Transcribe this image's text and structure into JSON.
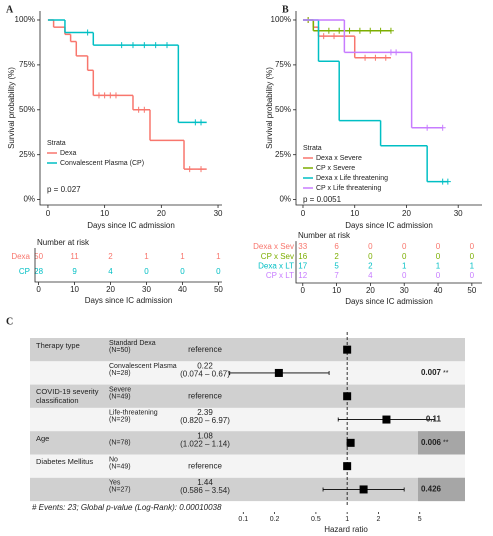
{
  "chart_data": [
    {
      "type": "km",
      "panel": "A",
      "xlabel": "Days since IC admission",
      "ylabel": "Survival probability (%)",
      "xlim": [
        -1.4,
        30.7
      ],
      "xticks": [
        0,
        10,
        20,
        30
      ],
      "ylim": [
        -3,
        105
      ],
      "yticks": [
        {
          "value": 0,
          "label": "0%"
        },
        {
          "value": 25,
          "label": "25%"
        },
        {
          "value": 50,
          "label": "50%"
        },
        {
          "value": 75,
          "label": "75%"
        },
        {
          "value": 100,
          "label": "100%"
        }
      ],
      "legend_title": "Strata",
      "annotation": "p = 0.027",
      "series": [
        {
          "name": "Dexa",
          "color": "#f8766d",
          "x": [
            0,
            1,
            3,
            4,
            5,
            7,
            8,
            15,
            18,
            24,
            28
          ],
          "values": [
            100,
            96,
            92,
            88,
            80,
            72,
            58,
            50,
            33,
            17,
            17
          ],
          "censor_x": [
            9,
            10,
            11,
            12,
            16,
            17,
            25,
            27
          ]
        },
        {
          "name": "Convalescent Plasma (CP)",
          "color": "#00bfc4",
          "x": [
            0,
            3,
            8,
            23,
            28
          ],
          "values": [
            100,
            93,
            86,
            43,
            43
          ],
          "censor_x": [
            7,
            13,
            15,
            17,
            19,
            21,
            26,
            27
          ]
        }
      ],
      "risk_table": {
        "title": "Number at risk",
        "xlabel": "Days since IC admission",
        "xlim": [
          -1,
          51
        ],
        "xticks": [
          0,
          10,
          20,
          30,
          40,
          50
        ],
        "rows": [
          {
            "name": "Dexa",
            "color": "#f8766d",
            "values": [
              50,
              11,
              2,
              1,
              1,
              1
            ]
          },
          {
            "name": "CP",
            "color": "#00bfc4",
            "values": [
              28,
              9,
              4,
              0,
              0,
              0
            ]
          }
        ]
      }
    },
    {
      "type": "km",
      "panel": "B",
      "xlabel": "Days since IC admission",
      "ylabel": "Survival probability (%)",
      "xlim": [
        -1.35,
        34.6
      ],
      "xticks": [
        0,
        10,
        20,
        30
      ],
      "ylim": [
        -3,
        105
      ],
      "yticks": [
        {
          "value": 0,
          "label": "0%"
        },
        {
          "value": 25,
          "label": "25%"
        },
        {
          "value": 50,
          "label": "50%"
        },
        {
          "value": 75,
          "label": "75%"
        },
        {
          "value": 100,
          "label": "100%"
        }
      ],
      "legend_title": "Strata",
      "annotation": "p = 0.0051",
      "series": [
        {
          "name": "Dexa x Severe",
          "color": "#f8766d",
          "x": [
            0,
            2,
            3,
            10,
            17
          ],
          "values": [
            100,
            96,
            91,
            79,
            79
          ],
          "censor_x": [
            1,
            4,
            6,
            8,
            12,
            14,
            16
          ]
        },
        {
          "name": "CP x Severe",
          "color": "#7cae00",
          "x": [
            0,
            2,
            17
          ],
          "values": [
            100,
            94,
            94
          ],
          "censor_x": [
            1,
            5,
            7,
            9,
            11,
            13,
            15,
            17
          ]
        },
        {
          "name": "Dexa x Life threatening",
          "color": "#00bfc4",
          "x": [
            0,
            3,
            7,
            15,
            24,
            28
          ],
          "values": [
            100,
            77,
            44,
            30,
            10,
            10
          ],
          "censor_x": [
            27,
            28
          ]
        },
        {
          "name": "CP x Life threatening",
          "color": "#c77cff",
          "x": [
            0,
            8,
            21,
            27
          ],
          "values": [
            100,
            82,
            40,
            40
          ],
          "censor_x": [
            17,
            18,
            24,
            27
          ]
        }
      ],
      "risk_table": {
        "title": "Number at risk",
        "xlabel": "Days since IC admission",
        "xlim": [
          -2,
          53
        ],
        "xticks": [
          0,
          10,
          20,
          30,
          40,
          50
        ],
        "rows": [
          {
            "name": "Dexa x Sev",
            "color": "#f8766d",
            "values": [
              33,
              6,
              0,
              0,
              0,
              0
            ]
          },
          {
            "name": "CP x Sev",
            "color": "#7cae00",
            "values": [
              16,
              2,
              0,
              0,
              0,
              0
            ]
          },
          {
            "name": "Dexa x LT",
            "color": "#00bfc4",
            "values": [
              17,
              5,
              2,
              1,
              1,
              1
            ]
          },
          {
            "name": "CP x LT",
            "color": "#c77cff",
            "values": [
              12,
              7,
              4,
              0,
              0,
              0
            ]
          }
        ]
      }
    },
    {
      "type": "forest",
      "panel": "C",
      "xlabel": "Hazard ratio",
      "log_x": true,
      "xlim": [
        0.03,
        10
      ],
      "xticks": [
        0.1,
        0.2,
        0.5,
        1,
        2,
        5
      ],
      "footnote": "# Events: 23; Global p-value (Log-Rank): 0.00010038",
      "rows": [
        {
          "variable": "Therapy type",
          "level": "Standard Dexa",
          "n": "(N=50)",
          "hr": 1,
          "hr_label": "reference"
        },
        {
          "level": "Convalescent Plasma",
          "n": "(N=28)",
          "hr": 0.22,
          "ci": [
            0.074,
            0.67
          ],
          "ci_label": "(0.074 – 0.67)",
          "p": 0.007,
          "stars": "**"
        },
        {
          "variable": "COVID-19 severity classification",
          "level": "Severe",
          "n": "(N=49)",
          "hr": 1,
          "hr_label": "reference"
        },
        {
          "level": "Life-threatening",
          "n": "(N=29)",
          "hr": 2.39,
          "ci": [
            0.82,
            6.97
          ],
          "ci_label": "(0.820 – 6.97)",
          "p": 0.11
        },
        {
          "variable": "Age",
          "n": "(N=78)",
          "hr": 1.08,
          "ci": [
            1.022,
            1.14
          ],
          "ci_label": "(1.022 – 1.14)",
          "p": 0.006,
          "stars": "**",
          "p_shade": "#a6a6a6"
        },
        {
          "variable": "Diabetes Mellitus",
          "level": "No",
          "n": "(N=49)",
          "hr": 1,
          "hr_label": "reference"
        },
        {
          "level": "Yes",
          "n": "(N=27)",
          "hr": 1.44,
          "ci": [
            0.586,
            3.54
          ],
          "ci_label": "(0.586 – 3.54)",
          "p": 0.426,
          "p_shade": "#a6a6a6"
        }
      ]
    }
  ]
}
